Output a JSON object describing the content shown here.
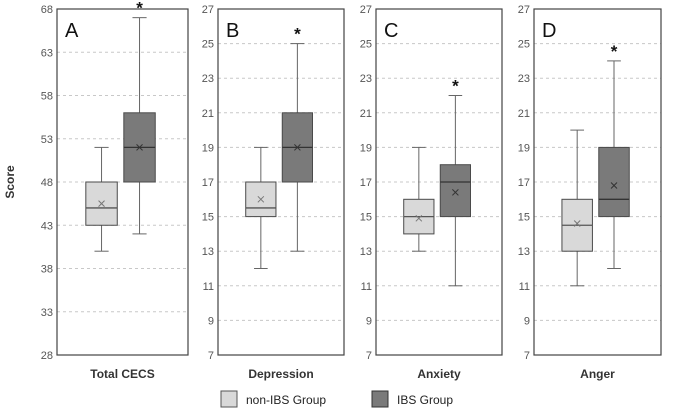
{
  "chart_data": [
    {
      "type": "box",
      "panel_letter": "A",
      "xlabel": "Total CECS",
      "ylabel": "Score",
      "ylim": [
        28,
        68
      ],
      "yticks": [
        28,
        33,
        38,
        43,
        48,
        53,
        58,
        63,
        68
      ],
      "grid": true,
      "groups": [
        {
          "whisker_low": 40,
          "q1": 43,
          "median": 45,
          "q3": 48,
          "whisker_high": 52,
          "mean": 45.5
        },
        {
          "whisker_low": 42,
          "q1": 48,
          "median": 52,
          "q3": 56,
          "whisker_high": 67,
          "mean": 52
        }
      ],
      "significance": "*"
    },
    {
      "type": "box",
      "panel_letter": "B",
      "xlabel": "Depression",
      "ylim": [
        7,
        27
      ],
      "yticks": [
        7,
        9,
        11,
        13,
        15,
        17,
        19,
        21,
        23,
        25,
        27
      ],
      "grid": true,
      "groups": [
        {
          "whisker_low": 12,
          "q1": 15,
          "median": 15.5,
          "q3": 17,
          "whisker_high": 19,
          "mean": 16
        },
        {
          "whisker_low": 13,
          "q1": 17,
          "median": 19,
          "q3": 21,
          "whisker_high": 25,
          "mean": 19
        }
      ],
      "significance": "*"
    },
    {
      "type": "box",
      "panel_letter": "C",
      "xlabel": "Anxiety",
      "ylim": [
        7,
        27
      ],
      "yticks": [
        7,
        9,
        11,
        13,
        15,
        17,
        19,
        21,
        23,
        25,
        27
      ],
      "grid": true,
      "groups": [
        {
          "whisker_low": 13,
          "q1": 14,
          "median": 15,
          "q3": 16,
          "whisker_high": 19,
          "mean": 14.9
        },
        {
          "whisker_low": 11,
          "q1": 15,
          "median": 17,
          "q3": 18,
          "whisker_high": 22,
          "mean": 16.4
        }
      ],
      "significance": "*"
    },
    {
      "type": "box",
      "panel_letter": "D",
      "xlabel": "Anger",
      "ylim": [
        7,
        27
      ],
      "yticks": [
        7,
        9,
        11,
        13,
        15,
        17,
        19,
        21,
        23,
        25,
        27
      ],
      "grid": true,
      "groups": [
        {
          "whisker_low": 11,
          "q1": 13,
          "median": 14.5,
          "q3": 16,
          "whisker_high": 20,
          "mean": 14.6
        },
        {
          "whisker_low": 12,
          "q1": 15,
          "median": 16,
          "q3": 19,
          "whisker_high": 24,
          "mean": 16.8
        }
      ],
      "significance": "*"
    }
  ],
  "legend": {
    "placement": "bottom-center",
    "items": [
      {
        "label": "non-IBS Group",
        "color": "#d9d9d9"
      },
      {
        "label": "IBS Group",
        "color": "#7a7a7a"
      }
    ]
  },
  "colors": {
    "non_ibs_box": "#d9d9d9",
    "ibs_box": "#7a7a7a",
    "median_line_non_ibs": "#555555",
    "median_line_ibs": "#333333",
    "grid": "#c8c8c8",
    "frame": "#444444"
  }
}
